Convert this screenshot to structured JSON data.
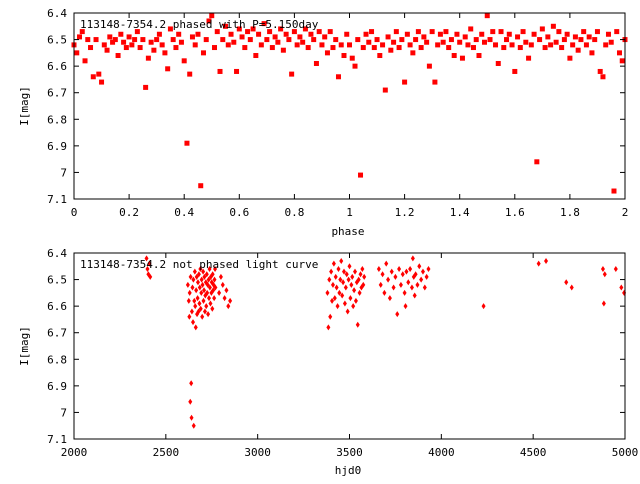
{
  "chart_data": [
    {
      "type": "scatter",
      "title": "113148-7354.2 phased with P=5.150day",
      "xlabel": "phase",
      "ylabel": "I[mag]",
      "xlim": [
        0,
        2
      ],
      "ylim": [
        7.1,
        6.4
      ],
      "y_inverted": true,
      "grid": false,
      "xticks": [
        "0",
        "0.2",
        "0.4",
        "0.6",
        "0.8",
        "1",
        "1.2",
        "1.4",
        "1.6",
        "1.8",
        "2"
      ],
      "yticks": [
        "6.4",
        "6.5",
        "6.6",
        "6.7",
        "6.8",
        "6.9",
        "7",
        "7.1"
      ],
      "marker": "square",
      "color": "#ff0000",
      "points": [
        [
          0.0,
          6.52
        ],
        [
          0.01,
          6.55
        ],
        [
          0.02,
          6.49
        ],
        [
          0.03,
          6.47
        ],
        [
          0.04,
          6.58
        ],
        [
          0.05,
          6.5
        ],
        [
          0.06,
          6.53
        ],
        [
          0.07,
          6.64
        ],
        [
          0.08,
          6.5
        ],
        [
          0.09,
          6.63
        ],
        [
          0.1,
          6.66
        ],
        [
          0.11,
          6.52
        ],
        [
          0.12,
          6.54
        ],
        [
          0.13,
          6.49
        ],
        [
          0.14,
          6.51
        ],
        [
          0.15,
          6.5
        ],
        [
          0.16,
          6.56
        ],
        [
          0.17,
          6.48
        ],
        [
          0.18,
          6.51
        ],
        [
          0.19,
          6.53
        ],
        [
          0.2,
          6.49
        ],
        [
          0.21,
          6.52
        ],
        [
          0.22,
          6.5
        ],
        [
          0.23,
          6.47
        ],
        [
          0.24,
          6.53
        ],
        [
          0.25,
          6.5
        ],
        [
          0.26,
          6.68
        ],
        [
          0.27,
          6.57
        ],
        [
          0.28,
          6.51
        ],
        [
          0.29,
          6.54
        ],
        [
          0.3,
          6.5
        ],
        [
          0.31,
          6.48
        ],
        [
          0.32,
          6.52
        ],
        [
          0.33,
          6.55
        ],
        [
          0.34,
          6.61
        ],
        [
          0.35,
          6.46
        ],
        [
          0.36,
          6.5
        ],
        [
          0.37,
          6.53
        ],
        [
          0.38,
          6.48
        ],
        [
          0.39,
          6.51
        ],
        [
          0.4,
          6.58
        ],
        [
          0.41,
          6.89
        ],
        [
          0.42,
          6.63
        ],
        [
          0.43,
          6.49
        ],
        [
          0.44,
          6.52
        ],
        [
          0.45,
          6.48
        ],
        [
          0.46,
          7.05
        ],
        [
          0.47,
          6.55
        ],
        [
          0.48,
          6.5
        ],
        [
          0.49,
          6.43
        ],
        [
          0.5,
          6.41
        ],
        [
          0.51,
          6.53
        ],
        [
          0.52,
          6.47
        ],
        [
          0.53,
          6.62
        ],
        [
          0.54,
          6.5
        ],
        [
          0.55,
          6.45
        ],
        [
          0.56,
          6.52
        ],
        [
          0.57,
          6.48
        ],
        [
          0.58,
          6.51
        ],
        [
          0.59,
          6.62
        ],
        [
          0.6,
          6.46
        ],
        [
          0.61,
          6.49
        ],
        [
          0.62,
          6.53
        ],
        [
          0.63,
          6.47
        ],
        [
          0.64,
          6.5
        ],
        [
          0.65,
          6.46
        ],
        [
          0.66,
          6.56
        ],
        [
          0.67,
          6.48
        ],
        [
          0.68,
          6.52
        ],
        [
          0.69,
          6.44
        ],
        [
          0.7,
          6.5
        ],
        [
          0.71,
          6.47
        ],
        [
          0.72,
          6.53
        ],
        [
          0.73,
          6.49
        ],
        [
          0.74,
          6.51
        ],
        [
          0.75,
          6.46
        ],
        [
          0.76,
          6.54
        ],
        [
          0.77,
          6.48
        ],
        [
          0.78,
          6.5
        ],
        [
          0.79,
          6.63
        ],
        [
          0.8,
          6.47
        ],
        [
          0.81,
          6.52
        ],
        [
          0.82,
          6.49
        ],
        [
          0.83,
          6.51
        ],
        [
          0.84,
          6.46
        ],
        [
          0.85,
          6.53
        ],
        [
          0.86,
          6.48
        ],
        [
          0.87,
          6.5
        ],
        [
          0.88,
          6.59
        ],
        [
          0.89,
          6.47
        ],
        [
          0.9,
          6.52
        ],
        [
          0.91,
          6.49
        ],
        [
          0.92,
          6.55
        ],
        [
          0.93,
          6.47
        ],
        [
          0.94,
          6.53
        ],
        [
          0.95,
          6.5
        ],
        [
          0.96,
          6.64
        ],
        [
          0.97,
          6.52
        ],
        [
          0.98,
          6.56
        ],
        [
          0.99,
          6.48
        ],
        [
          1.0,
          6.52
        ],
        [
          1.01,
          6.57
        ],
        [
          1.02,
          6.6
        ],
        [
          1.03,
          6.5
        ],
        [
          1.04,
          7.01
        ],
        [
          1.05,
          6.53
        ],
        [
          1.06,
          6.48
        ],
        [
          1.07,
          6.51
        ],
        [
          1.08,
          6.47
        ],
        [
          1.09,
          6.53
        ],
        [
          1.1,
          6.5
        ],
        [
          1.11,
          6.56
        ],
        [
          1.12,
          6.52
        ],
        [
          1.13,
          6.69
        ],
        [
          1.14,
          6.49
        ],
        [
          1.15,
          6.54
        ],
        [
          1.16,
          6.51
        ],
        [
          1.17,
          6.47
        ],
        [
          1.18,
          6.53
        ],
        [
          1.19,
          6.5
        ],
        [
          1.2,
          6.66
        ],
        [
          1.21,
          6.48
        ],
        [
          1.22,
          6.52
        ],
        [
          1.23,
          6.55
        ],
        [
          1.24,
          6.5
        ],
        [
          1.25,
          6.47
        ],
        [
          1.26,
          6.53
        ],
        [
          1.27,
          6.49
        ],
        [
          1.28,
          6.51
        ],
        [
          1.29,
          6.6
        ],
        [
          1.3,
          6.47
        ],
        [
          1.31,
          6.66
        ],
        [
          1.32,
          6.52
        ],
        [
          1.33,
          6.48
        ],
        [
          1.34,
          6.51
        ],
        [
          1.35,
          6.47
        ],
        [
          1.36,
          6.53
        ],
        [
          1.37,
          6.5
        ],
        [
          1.38,
          6.56
        ],
        [
          1.39,
          6.48
        ],
        [
          1.4,
          6.51
        ],
        [
          1.41,
          6.57
        ],
        [
          1.42,
          6.49
        ],
        [
          1.43,
          6.52
        ],
        [
          1.44,
          6.46
        ],
        [
          1.45,
          6.53
        ],
        [
          1.46,
          6.5
        ],
        [
          1.47,
          6.56
        ],
        [
          1.48,
          6.48
        ],
        [
          1.49,
          6.51
        ],
        [
          1.5,
          6.41
        ],
        [
          1.51,
          6.5
        ],
        [
          1.52,
          6.47
        ],
        [
          1.53,
          6.52
        ],
        [
          1.54,
          6.59
        ],
        [
          1.55,
          6.47
        ],
        [
          1.56,
          6.53
        ],
        [
          1.57,
          6.5
        ],
        [
          1.58,
          6.48
        ],
        [
          1.59,
          6.52
        ],
        [
          1.6,
          6.62
        ],
        [
          1.61,
          6.49
        ],
        [
          1.62,
          6.53
        ],
        [
          1.63,
          6.47
        ],
        [
          1.64,
          6.51
        ],
        [
          1.65,
          6.57
        ],
        [
          1.66,
          6.52
        ],
        [
          1.67,
          6.48
        ],
        [
          1.68,
          6.96
        ],
        [
          1.69,
          6.5
        ],
        [
          1.7,
          6.46
        ],
        [
          1.71,
          6.53
        ],
        [
          1.72,
          6.49
        ],
        [
          1.73,
          6.52
        ],
        [
          1.74,
          6.45
        ],
        [
          1.75,
          6.51
        ],
        [
          1.76,
          6.47
        ],
        [
          1.77,
          6.53
        ],
        [
          1.78,
          6.5
        ],
        [
          1.79,
          6.48
        ],
        [
          1.8,
          6.57
        ],
        [
          1.81,
          6.52
        ],
        [
          1.82,
          6.49
        ],
        [
          1.83,
          6.54
        ],
        [
          1.84,
          6.5
        ],
        [
          1.85,
          6.47
        ],
        [
          1.86,
          6.52
        ],
        [
          1.87,
          6.49
        ],
        [
          1.88,
          6.55
        ],
        [
          1.89,
          6.5
        ],
        [
          1.9,
          6.47
        ],
        [
          1.91,
          6.62
        ],
        [
          1.92,
          6.64
        ],
        [
          1.93,
          6.52
        ],
        [
          1.94,
          6.48
        ],
        [
          1.95,
          6.51
        ],
        [
          1.96,
          7.07
        ],
        [
          1.97,
          6.47
        ],
        [
          1.98,
          6.55
        ],
        [
          1.99,
          6.58
        ],
        [
          2.0,
          6.5
        ]
      ]
    },
    {
      "type": "scatter",
      "title": "113148-7354.2 not phased light curve",
      "xlabel": "hjd0",
      "ylabel": "I[mag]",
      "xlim": [
        2000,
        5000
      ],
      "ylim": [
        7.1,
        6.4
      ],
      "y_inverted": true,
      "grid": false,
      "xticks": [
        "2000",
        "2500",
        "3000",
        "3500",
        "4000",
        "4500",
        "5000"
      ],
      "yticks": [
        "6.4",
        "6.5",
        "6.6",
        "6.7",
        "6.8",
        "6.9",
        "7",
        "7.1"
      ],
      "marker": "diamond",
      "color": "#ff0000",
      "points": [
        [
          2395,
          6.42
        ],
        [
          2400,
          6.46
        ],
        [
          2405,
          6.48
        ],
        [
          2410,
          6.44
        ],
        [
          2415,
          6.49
        ],
        [
          2620,
          6.52
        ],
        [
          2625,
          6.58
        ],
        [
          2628,
          6.64
        ],
        [
          2630,
          6.55
        ],
        [
          2633,
          6.96
        ],
        [
          2635,
          6.49
        ],
        [
          2638,
          6.89
        ],
        [
          2640,
          7.02
        ],
        [
          2642,
          6.62
        ],
        [
          2645,
          6.53
        ],
        [
          2648,
          6.66
        ],
        [
          2650,
          6.5
        ],
        [
          2652,
          7.05
        ],
        [
          2655,
          6.58
        ],
        [
          2658,
          6.47
        ],
        [
          2660,
          6.6
        ],
        [
          2663,
          6.68
        ],
        [
          2665,
          6.54
        ],
        [
          2668,
          6.49
        ],
        [
          2670,
          6.63
        ],
        [
          2673,
          6.57
        ],
        [
          2675,
          6.51
        ],
        [
          2678,
          6.62
        ],
        [
          2680,
          6.48
        ],
        [
          2683,
          6.59
        ],
        [
          2685,
          6.53
        ],
        [
          2688,
          6.46
        ],
        [
          2690,
          6.61
        ],
        [
          2693,
          6.55
        ],
        [
          2695,
          6.5
        ],
        [
          2698,
          6.64
        ],
        [
          2700,
          6.52
        ],
        [
          2703,
          6.47
        ],
        [
          2705,
          6.58
        ],
        [
          2708,
          6.54
        ],
        [
          2710,
          6.49
        ],
        [
          2713,
          6.62
        ],
        [
          2715,
          6.56
        ],
        [
          2718,
          6.51
        ],
        [
          2720,
          6.6
        ],
        [
          2723,
          6.48
        ],
        [
          2725,
          6.55
        ],
        [
          2728,
          6.52
        ],
        [
          2730,
          6.63
        ],
        [
          2733,
          6.5
        ],
        [
          2735,
          6.57
        ],
        [
          2738,
          6.46
        ],
        [
          2740,
          6.53
        ],
        [
          2743,
          6.59
        ],
        [
          2745,
          6.49
        ],
        [
          2748,
          6.55
        ],
        [
          2750,
          6.51
        ],
        [
          2753,
          6.61
        ],
        [
          2755,
          6.48
        ],
        [
          2758,
          6.54
        ],
        [
          2760,
          6.52
        ],
        [
          2763,
          6.57
        ],
        [
          2765,
          6.5
        ],
        [
          2768,
          6.46
        ],
        [
          2770,
          6.53
        ],
        [
          2790,
          6.55
        ],
        [
          2800,
          6.49
        ],
        [
          2810,
          6.52
        ],
        [
          2820,
          6.57
        ],
        [
          2830,
          6.54
        ],
        [
          2840,
          6.6
        ],
        [
          2850,
          6.58
        ],
        [
          3380,
          6.55
        ],
        [
          3385,
          6.68
        ],
        [
          3390,
          6.5
        ],
        [
          3395,
          6.64
        ],
        [
          3400,
          6.47
        ],
        [
          3405,
          6.58
        ],
        [
          3410,
          6.52
        ],
        [
          3415,
          6.44
        ],
        [
          3420,
          6.57
        ],
        [
          3425,
          6.49
        ],
        [
          3430,
          6.53
        ],
        [
          3435,
          6.6
        ],
        [
          3440,
          6.46
        ],
        [
          3445,
          6.55
        ],
        [
          3450,
          6.5
        ],
        [
          3455,
          6.43
        ],
        [
          3460,
          6.56
        ],
        [
          3465,
          6.51
        ],
        [
          3470,
          6.47
        ],
        [
          3475,
          6.59
        ],
        [
          3480,
          6.53
        ],
        [
          3485,
          6.48
        ],
        [
          3490,
          6.62
        ],
        [
          3495,
          6.5
        ],
        [
          3500,
          6.45
        ],
        [
          3505,
          6.57
        ],
        [
          3510,
          6.52
        ],
        [
          3515,
          6.49
        ],
        [
          3520,
          6.6
        ],
        [
          3525,
          6.54
        ],
        [
          3530,
          6.47
        ],
        [
          3535,
          6.58
        ],
        [
          3540,
          6.51
        ],
        [
          3545,
          6.67
        ],
        [
          3550,
          6.5
        ],
        [
          3555,
          6.55
        ],
        [
          3560,
          6.48
        ],
        [
          3565,
          6.53
        ],
        [
          3570,
          6.46
        ],
        [
          3575,
          6.52
        ],
        [
          3580,
          6.49
        ],
        [
          3660,
          6.46
        ],
        [
          3670,
          6.52
        ],
        [
          3680,
          6.48
        ],
        [
          3690,
          6.55
        ],
        [
          3700,
          6.44
        ],
        [
          3710,
          6.5
        ],
        [
          3720,
          6.57
        ],
        [
          3730,
          6.47
        ],
        [
          3740,
          6.53
        ],
        [
          3750,
          6.49
        ],
        [
          3760,
          6.63
        ],
        [
          3770,
          6.46
        ],
        [
          3780,
          6.52
        ],
        [
          3790,
          6.48
        ],
        [
          3800,
          6.55
        ],
        [
          3805,
          6.6
        ],
        [
          3810,
          6.47
        ],
        [
          3820,
          6.51
        ],
        [
          3830,
          6.46
        ],
        [
          3840,
          6.53
        ],
        [
          3845,
          6.42
        ],
        [
          3850,
          6.49
        ],
        [
          3855,
          6.56
        ],
        [
          3860,
          6.48
        ],
        [
          3870,
          6.52
        ],
        [
          3880,
          6.45
        ],
        [
          3890,
          6.5
        ],
        [
          3900,
          6.47
        ],
        [
          3910,
          6.53
        ],
        [
          3920,
          6.49
        ],
        [
          3930,
          6.46
        ],
        [
          4230,
          6.6
        ],
        [
          4530,
          6.44
        ],
        [
          4570,
          6.43
        ],
        [
          4680,
          6.51
        ],
        [
          4710,
          6.53
        ],
        [
          4880,
          6.46
        ],
        [
          4885,
          6.59
        ],
        [
          4890,
          6.48
        ],
        [
          4950,
          6.46
        ],
        [
          4980,
          6.53
        ],
        [
          4995,
          6.55
        ]
      ]
    }
  ]
}
